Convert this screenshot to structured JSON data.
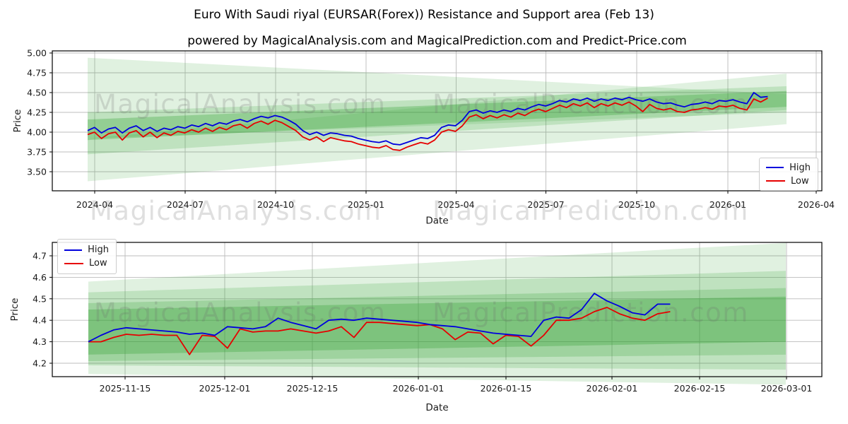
{
  "header": {
    "title": "Euro With Saudi riyal (EURSAR(Forex)) Resistance and Support area (Feb 13)",
    "subtitle": "powered by MagicalAnalysis.com and MagicalPrediction.com and Predict-Price.com"
  },
  "legend": {
    "high_label": "High",
    "low_label": "Low"
  },
  "watermarks": {
    "row_top_chart": [
      "MagicalAnalysis.com",
      "MagicalPrediction.com"
    ],
    "row_between": [
      "MagicalAnalysis.com",
      "MagicalPrediction.com"
    ],
    "row_bottom_chart": [
      "MagicalAnalysis.com",
      "MagicalPrediction.com"
    ]
  },
  "colors": {
    "high": "#0000dd",
    "low": "#e60000",
    "band_green": "#2f9e2f",
    "grid": "#bcbcbc",
    "axis": "#000000",
    "tick_text": "#1a1a1a",
    "watermark": "rgba(110,110,110,0.22)"
  },
  "chart_data": [
    {
      "type": "line",
      "title": "",
      "xlabel": "Date",
      "ylabel": "Price",
      "grid": true,
      "legend_position": "lower right",
      "x_tick_labels": [
        "2024-04",
        "2024-07",
        "2024-10",
        "2025-01",
        "2025-04",
        "2025-07",
        "2025-10",
        "2026-01",
        "2026-04"
      ],
      "y_tick_labels": [
        "5.00",
        "4.75",
        "4.50",
        "4.25",
        "4.00",
        "3.75",
        "3.50"
      ],
      "y_tick_values": [
        5.0,
        4.75,
        4.5,
        4.25,
        4.0,
        3.75,
        3.5
      ],
      "ylim": [
        3.26,
        5.03
      ],
      "x_start_date": "2024-03-25",
      "x_interval_days": 7,
      "series": [
        {
          "name": "High",
          "color_key": "high",
          "values": [
            4.02,
            4.06,
            3.99,
            4.04,
            4.06,
            3.99,
            4.05,
            4.08,
            4.02,
            4.06,
            4.01,
            4.05,
            4.03,
            4.07,
            4.05,
            4.09,
            4.07,
            4.11,
            4.08,
            4.12,
            4.1,
            4.14,
            4.16,
            4.13,
            4.17,
            4.2,
            4.18,
            4.21,
            4.19,
            4.15,
            4.1,
            4.02,
            3.97,
            4.0,
            3.96,
            3.99,
            3.98,
            3.96,
            3.95,
            3.92,
            3.9,
            3.88,
            3.87,
            3.89,
            3.85,
            3.84,
            3.87,
            3.9,
            3.93,
            3.92,
            3.96,
            4.06,
            4.09,
            4.08,
            4.15,
            4.26,
            4.28,
            4.24,
            4.27,
            4.25,
            4.28,
            4.26,
            4.3,
            4.28,
            4.32,
            4.35,
            4.33,
            4.36,
            4.4,
            4.38,
            4.42,
            4.4,
            4.43,
            4.39,
            4.42,
            4.4,
            4.43,
            4.41,
            4.44,
            4.41,
            4.39,
            4.42,
            4.38,
            4.36,
            4.37,
            4.34,
            4.32,
            4.35,
            4.36,
            4.38,
            4.36,
            4.4,
            4.39,
            4.41,
            4.38,
            4.36,
            4.5,
            4.44,
            4.45
          ]
        },
        {
          "name": "Low",
          "color_key": "low",
          "values": [
            3.97,
            4.0,
            3.92,
            3.98,
            4.0,
            3.9,
            3.99,
            4.02,
            3.94,
            4.0,
            3.93,
            3.99,
            3.96,
            4.01,
            3.99,
            4.03,
            4.0,
            4.05,
            4.01,
            4.06,
            4.03,
            4.08,
            4.1,
            4.05,
            4.11,
            4.14,
            4.1,
            4.15,
            4.12,
            4.07,
            4.02,
            3.94,
            3.9,
            3.94,
            3.88,
            3.93,
            3.91,
            3.89,
            3.88,
            3.85,
            3.83,
            3.81,
            3.8,
            3.83,
            3.78,
            3.77,
            3.81,
            3.84,
            3.87,
            3.85,
            3.9,
            4.0,
            4.03,
            4.01,
            4.08,
            4.19,
            4.22,
            4.17,
            4.21,
            4.18,
            4.22,
            4.19,
            4.24,
            4.21,
            4.26,
            4.29,
            4.26,
            4.3,
            4.34,
            4.31,
            4.36,
            4.33,
            4.37,
            4.31,
            4.36,
            4.33,
            4.37,
            4.34,
            4.38,
            4.33,
            4.26,
            4.35,
            4.3,
            4.28,
            4.3,
            4.26,
            4.25,
            4.28,
            4.29,
            4.31,
            4.29,
            4.33,
            4.32,
            4.34,
            4.3,
            4.28,
            4.42,
            4.38,
            4.43
          ]
        }
      ],
      "bands": [
        {
          "name": "resistance-fan-light",
          "top_left": 4.94,
          "top_right": 4.48,
          "bottom_left": 3.92,
          "bottom_right": 4.25,
          "opacity": 0.15
        },
        {
          "name": "support-fan-light",
          "top_left": 3.92,
          "top_right": 4.74,
          "bottom_left": 3.38,
          "bottom_right": 4.1,
          "opacity": 0.15
        },
        {
          "name": "mid-band-medium",
          "top_left": 4.25,
          "top_right": 4.58,
          "bottom_left": 3.72,
          "bottom_right": 4.28,
          "opacity": 0.18
        },
        {
          "name": "core-band-dark",
          "top_left": 4.16,
          "top_right": 4.52,
          "bottom_left": 3.9,
          "bottom_right": 4.32,
          "opacity": 0.3
        }
      ]
    },
    {
      "type": "line",
      "title": "",
      "xlabel": "Date",
      "ylabel": "Price",
      "grid": true,
      "legend_position": "upper left",
      "x_tick_labels": [
        "2025-11-15",
        "2025-12-01",
        "2025-12-15",
        "2026-01-01",
        "2026-01-15",
        "2026-02-01",
        "2026-02-15",
        "2026-03-01"
      ],
      "y_tick_labels": [
        "4.7",
        "4.6",
        "4.5",
        "4.4",
        "4.3",
        "4.2"
      ],
      "y_tick_values": [
        4.7,
        4.6,
        4.5,
        4.4,
        4.3,
        4.2
      ],
      "ylim": [
        4.14,
        4.77
      ],
      "x_start_date": "2025-11-09",
      "x_interval_days": 2,
      "series": [
        {
          "name": "High",
          "color_key": "high",
          "values": [
            4.3,
            4.33,
            4.355,
            4.365,
            4.36,
            4.355,
            4.35,
            4.345,
            4.335,
            4.34,
            4.33,
            4.37,
            4.365,
            4.36,
            4.37,
            4.41,
            4.39,
            4.375,
            4.36,
            4.4,
            4.405,
            4.4,
            4.41,
            4.405,
            4.4,
            4.395,
            4.39,
            4.38,
            4.375,
            4.37,
            4.36,
            4.35,
            4.34,
            4.335,
            4.33,
            4.325,
            4.4,
            4.415,
            4.41,
            4.45,
            4.525,
            4.49,
            4.465,
            4.435,
            4.425,
            4.475,
            4.475
          ]
        },
        {
          "name": "Low",
          "color_key": "low",
          "values": [
            4.3,
            4.3,
            4.32,
            4.335,
            4.33,
            4.335,
            4.33,
            4.33,
            4.24,
            4.33,
            4.325,
            4.27,
            4.36,
            4.345,
            4.35,
            4.35,
            4.36,
            4.35,
            4.34,
            4.35,
            4.37,
            4.32,
            4.39,
            4.39,
            4.385,
            4.38,
            4.375,
            4.38,
            4.36,
            4.31,
            4.345,
            4.34,
            4.29,
            4.33,
            4.325,
            4.28,
            4.33,
            4.4,
            4.4,
            4.41,
            4.44,
            4.46,
            4.43,
            4.41,
            4.4,
            4.43,
            4.44
          ]
        }
      ],
      "bands": [
        {
          "name": "outer-band-light",
          "top_left": 4.58,
          "top_right": 4.76,
          "bottom_left": 4.15,
          "bottom_right": 4.1,
          "opacity": 0.15
        },
        {
          "name": "mid-band-light",
          "top_left": 4.53,
          "top_right": 4.63,
          "bottom_left": 4.19,
          "bottom_right": 4.17,
          "opacity": 0.18
        },
        {
          "name": "inner-band-medium",
          "top_left": 4.48,
          "top_right": 4.55,
          "bottom_left": 4.21,
          "bottom_right": 4.24,
          "opacity": 0.22
        },
        {
          "name": "core-band-dark",
          "top_left": 4.45,
          "top_right": 4.51,
          "bottom_left": 4.24,
          "bottom_right": 4.3,
          "opacity": 0.3
        }
      ]
    }
  ]
}
